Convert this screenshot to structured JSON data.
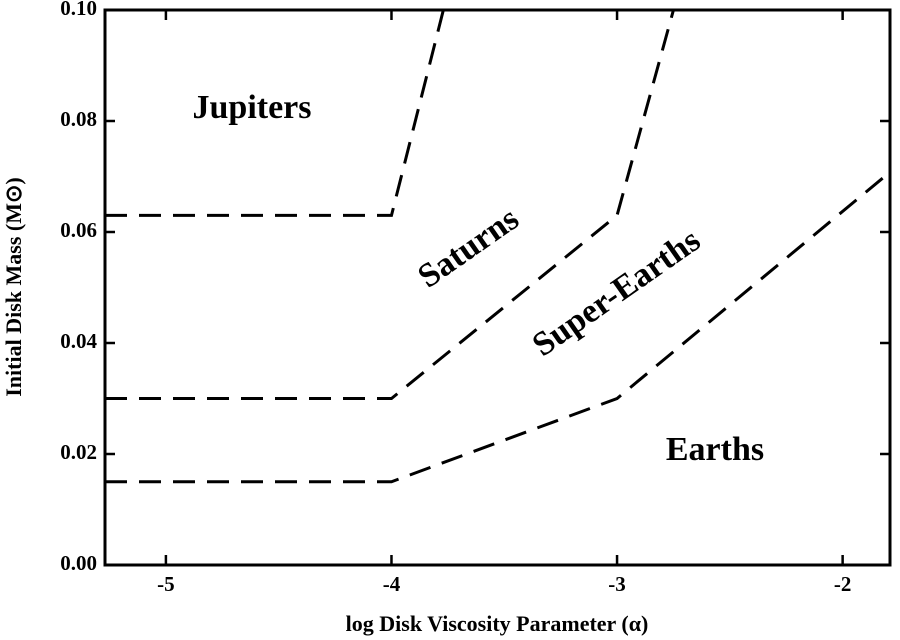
{
  "chart_data": {
    "type": "line",
    "x_label": "log Disk Viscosity Parameter (α)",
    "y_label": "Initial Disk Mass (M⊙)",
    "xlim": [
      -5.27,
      -1.79
    ],
    "ylim": [
      0,
      0.1
    ],
    "xticks": [
      -5,
      -4,
      -3,
      -2
    ],
    "yticks": [
      {
        "value": 0,
        "label": "0.00"
      },
      {
        "value": 0.02,
        "label": "0.02"
      },
      {
        "value": 0.04,
        "label": "0.04"
      },
      {
        "value": 0.06,
        "label": "0.06"
      },
      {
        "value": 0.08,
        "label": "0.08"
      },
      {
        "value": 0.1,
        "label": "0.10"
      }
    ],
    "series": [
      {
        "color": "#000000",
        "x": [
          -5.27,
          -4,
          -3.77
        ],
        "values": [
          0.063,
          0.063,
          0.1
        ]
      },
      {
        "color": "#000000",
        "x": [
          -5.27,
          -4,
          -3,
          -2.75
        ],
        "values": [
          0.03,
          0.03,
          0.063,
          0.1
        ]
      },
      {
        "color": "#000000",
        "x": [
          -5.27,
          -4,
          -3,
          -1.79
        ],
        "values": [
          0.015,
          0.015,
          0.03,
          0.0708
        ]
      }
    ],
    "annotations": [
      "Jupiters",
      "Saturns",
      "Super-Earths",
      "Earths"
    ]
  }
}
